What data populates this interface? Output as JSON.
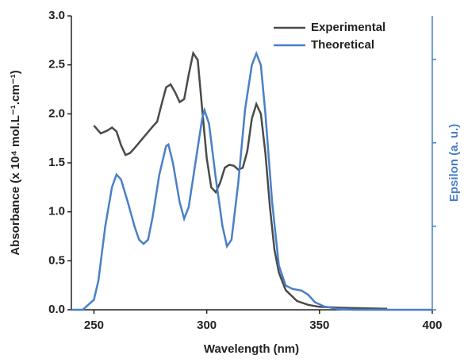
{
  "chart_data": {
    "type": "line",
    "x_label": "Wavelength (nm)",
    "y_label": "Absorbance (x 10⁴ mol.L⁻¹.cm⁻¹)",
    "y2_label": "Epsilon (a. u.)",
    "xlim": [
      240,
      400
    ],
    "xticks": [
      250,
      300,
      350,
      400
    ],
    "ylim": [
      0,
      3.0
    ],
    "yticks": [
      {
        "value": 0,
        "label": "0.0"
      },
      0.5,
      {
        "value": 1,
        "label": "1.0"
      },
      1.5,
      {
        "value": 2,
        "label": "2.0"
      },
      2.5,
      {
        "value": 3,
        "label": "3.0"
      }
    ],
    "y2lim": [
      0,
      3.52
    ],
    "y2ticks": [
      0,
      1,
      2,
      3
    ],
    "legend": "upper right",
    "series": [
      {
        "name": "Experimental",
        "color": "#4a4a4a",
        "x": [
          250,
          253,
          256,
          258,
          260,
          262,
          264,
          266,
          268,
          272,
          276,
          278,
          280,
          282,
          284,
          286,
          288,
          290,
          292,
          294,
          296,
          298,
          300,
          302,
          304,
          306,
          308,
          310,
          312,
          314,
          316,
          318,
          320,
          322,
          324,
          326,
          328,
          330,
          332,
          335,
          340,
          345,
          350,
          360,
          380
        ],
        "values": [
          1.88,
          1.8,
          1.83,
          1.86,
          1.82,
          1.68,
          1.58,
          1.6,
          1.65,
          1.76,
          1.87,
          1.92,
          2.1,
          2.27,
          2.3,
          2.22,
          2.12,
          2.15,
          2.4,
          2.62,
          2.55,
          2.05,
          1.55,
          1.25,
          1.2,
          1.3,
          1.45,
          1.48,
          1.47,
          1.43,
          1.45,
          1.62,
          1.95,
          2.1,
          2.0,
          1.6,
          1.05,
          0.62,
          0.38,
          0.2,
          0.09,
          0.05,
          0.03,
          0.02,
          0.01
        ]
      },
      {
        "name": "Theoretical",
        "color": "#4a7fc8",
        "axis": "y2",
        "x": [
          240,
          245,
          250,
          252,
          255,
          258,
          260,
          262,
          265,
          268,
          270,
          272,
          274,
          276,
          279,
          282,
          283,
          285,
          288,
          290,
          292,
          295,
          298,
          299,
          301,
          304,
          307,
          309,
          311,
          314,
          317,
          320,
          322,
          324,
          326,
          329,
          332,
          335,
          338,
          342,
          345,
          348,
          352,
          358,
          365,
          400
        ],
        "values": [
          0,
          0,
          0.12,
          0.35,
          1.0,
          1.47,
          1.62,
          1.56,
          1.29,
          1.0,
          0.84,
          0.79,
          0.84,
          1.11,
          1.62,
          1.96,
          1.98,
          1.76,
          1.29,
          1.09,
          1.23,
          1.76,
          2.29,
          2.39,
          2.23,
          1.58,
          1.0,
          0.76,
          0.84,
          1.52,
          2.4,
          2.93,
          3.07,
          2.93,
          2.35,
          1.29,
          0.53,
          0.29,
          0.25,
          0.23,
          0.18,
          0.09,
          0.04,
          0.01,
          0,
          0
        ]
      }
    ]
  }
}
